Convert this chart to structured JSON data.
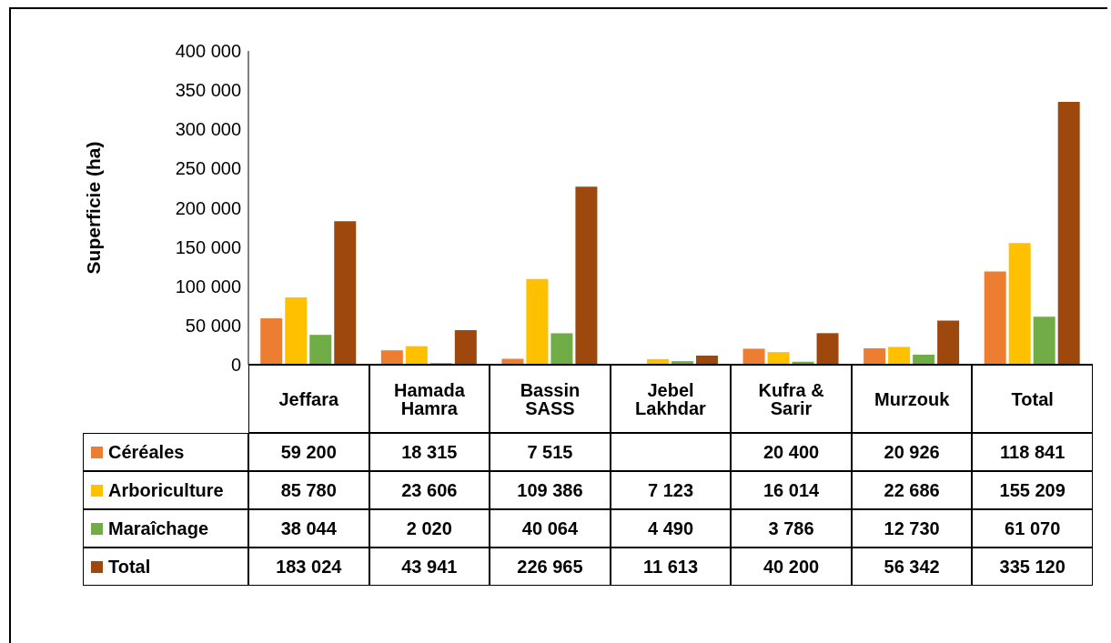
{
  "chart_data": {
    "type": "bar",
    "ylabel": "Superficie (ha)",
    "categories": [
      "Jeffara",
      "Hamada Hamra",
      "Bassin SASS",
      "Jebel Lakhdar",
      "Kufra & Sarir",
      "Murzouk",
      "Total"
    ],
    "series": [
      {
        "name": "Céréales",
        "color": "#ed7d31",
        "values": [
          59200,
          18315,
          7515,
          null,
          20400,
          20926,
          118841
        ],
        "value_labels": [
          "59 200",
          "18 315",
          "7 515",
          null,
          "20 400",
          "20 926",
          "118 841"
        ]
      },
      {
        "name": "Arboriculture",
        "color": "#ffc000",
        "values": [
          85780,
          23606,
          109386,
          7123,
          16014,
          22686,
          155209
        ],
        "value_labels": [
          "85 780",
          "23 606",
          "109 386",
          "7 123",
          "16 014",
          "22 686",
          "155 209"
        ]
      },
      {
        "name": "Maraîchage",
        "color": "#70ad47",
        "values": [
          38044,
          2020,
          40064,
          4490,
          3786,
          12730,
          61070
        ],
        "value_labels": [
          "38 044",
          "2 020",
          "40 064",
          "4 490",
          "3 786",
          "12 730",
          "61 070"
        ]
      },
      {
        "name": "Total",
        "color": "#9e480e",
        "values": [
          183024,
          43941,
          226965,
          11613,
          40200,
          56342,
          335120
        ],
        "value_labels": [
          "183 024",
          "43 941",
          "226 965",
          "11 613",
          "40 200",
          "56 342",
          "335 120"
        ]
      }
    ],
    "ylim": [
      0,
      400000
    ],
    "yticks": [
      0,
      {
        "value": 50000,
        "label": "50 000"
      },
      {
        "value": 100000,
        "label": "100 000"
      },
      {
        "value": 150000,
        "label": "150 000"
      },
      {
        "value": 200000,
        "label": "200 000"
      },
      {
        "value": 250000,
        "label": "250 000"
      },
      {
        "value": 300000,
        "label": "300 000"
      },
      {
        "value": 350000,
        "label": "350 000"
      },
      {
        "value": 400000,
        "label": "400 000"
      }
    ],
    "grid": false,
    "legend": "bottom"
  }
}
